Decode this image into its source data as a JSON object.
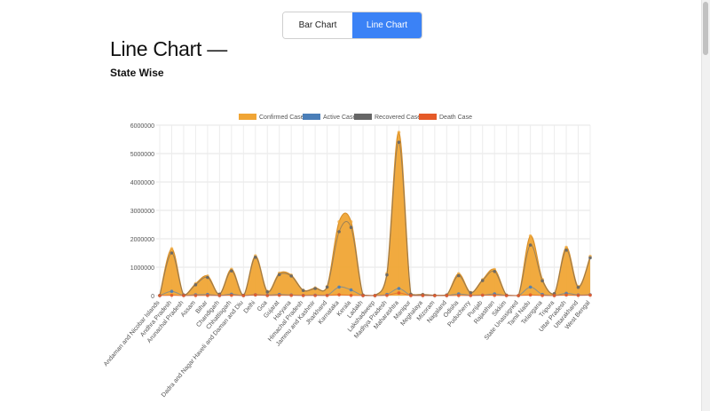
{
  "tabs": [
    {
      "label": "Bar Chart",
      "active": false
    },
    {
      "label": "Line Chart",
      "active": true
    }
  ],
  "title": "Line Chart —",
  "subtitle": "State Wise",
  "colors": {
    "confirmed": "#f0a535",
    "active": "#4a7eb8",
    "recovered": "#666666",
    "death": "#e55a28",
    "accent": "#3b82f6"
  },
  "chart_data": {
    "type": "area",
    "x": [
      "Andaman and Nicobar Islands",
      "Andhra Pradesh",
      "Arunachal Pradesh",
      "Assam",
      "Bihar",
      "Chandigarh",
      "Chhattisgarh",
      "Dadra and Nagar Haveli and Daman and Diu",
      "Delhi",
      "Goa",
      "Gujarat",
      "Haryana",
      "Himachal Pradesh",
      "Jammu and Kashmir",
      "Jharkhand",
      "Karnataka",
      "Kerala",
      "Ladakh",
      "Lakshadweep",
      "Madhya Pradesh",
      "Maharashtra",
      "Manipur",
      "Meghalaya",
      "Mizoram",
      "Nagaland",
      "Odisha",
      "Puducherry",
      "Punjab",
      "Rajasthan",
      "Sikkim",
      "State Unassigned",
      "Tamil Nadu",
      "Telangana",
      "Tripura",
      "Uttar Pradesh",
      "Uttarakhand",
      "West Bengal"
    ],
    "series": [
      {
        "name": "Confirmed Case",
        "values": [
          7000,
          1650000,
          25000,
          420000,
          690000,
          55000,
          930000,
          10000,
          1400000,
          150000,
          790000,
          720000,
          190000,
          270000,
          320000,
          2600000,
          2600000,
          19000,
          5000,
          780000,
          5750000,
          55000,
          40000,
          10000,
          23000,
          770000,
          110000,
          560000,
          920000,
          18000,
          0,
          2100000,
          570000,
          70000,
          1700000,
          320000,
          1380000
        ]
      },
      {
        "name": "Active Case",
        "values": [
          500,
          150000,
          2000,
          30000,
          40000,
          3000,
          50000,
          500,
          30000,
          15000,
          40000,
          20000,
          5000,
          15000,
          10000,
          300000,
          200000,
          1000,
          500,
          40000,
          250000,
          10000,
          5000,
          1000,
          1000,
          60000,
          10000,
          15000,
          60000,
          2000,
          0,
          300000,
          40000,
          2000,
          80000,
          20000,
          30000
        ]
      },
      {
        "name": "Recovered Case",
        "values": [
          6400,
          1500000,
          22000,
          380000,
          640000,
          50000,
          870000,
          9000,
          1350000,
          130000,
          740000,
          690000,
          180000,
          250000,
          300000,
          2250000,
          2400000,
          18000,
          4000,
          730000,
          5400000,
          44000,
          34000,
          9000,
          21000,
          700000,
          100000,
          530000,
          850000,
          16000,
          0,
          1780000,
          520000,
          67000,
          1600000,
          290000,
          1330000
        ]
      },
      {
        "name": "Death Case",
        "values": [
          100,
          11000,
          100,
          3000,
          4000,
          600,
          12000,
          4,
          25000,
          3000,
          10000,
          9000,
          3000,
          4000,
          5000,
          30000,
          7000,
          200,
          10,
          8000,
          95000,
          800,
          800,
          20,
          500,
          3000,
          1700,
          15000,
          8000,
          300,
          0,
          25000,
          3000,
          800,
          20000,
          7000,
          17000
        ]
      }
    ],
    "ylim": [
      0,
      6000000
    ],
    "yticks": [
      "0",
      "1000000",
      "2000000",
      "3000000",
      "4000000",
      "5000000",
      "6000000"
    ],
    "legend_position": "top",
    "grid": true
  }
}
